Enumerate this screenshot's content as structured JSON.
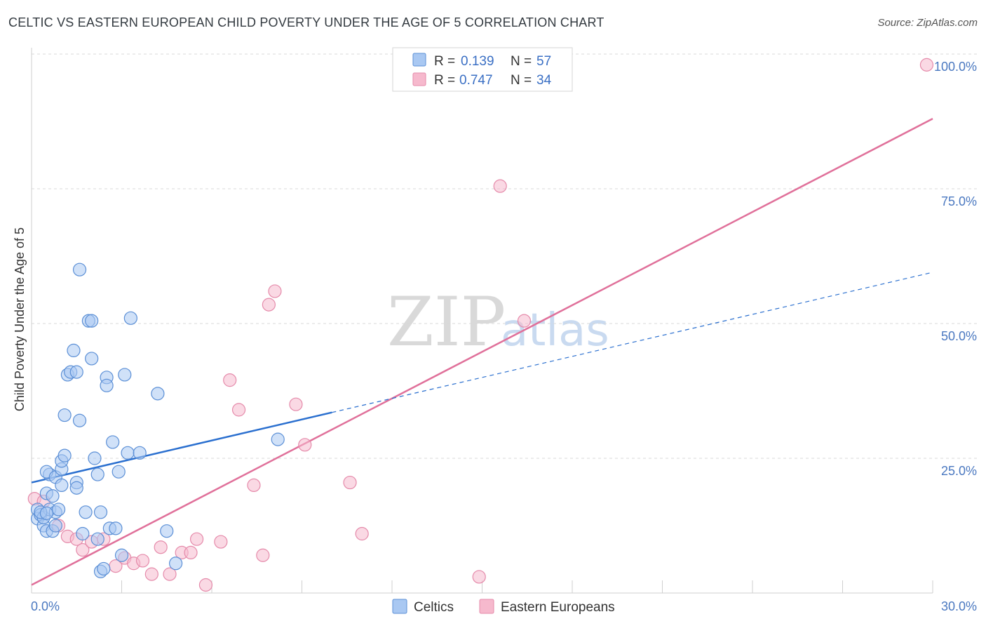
{
  "title": "CELTIC VS EASTERN EUROPEAN CHILD POVERTY UNDER THE AGE OF 5 CORRELATION CHART",
  "source": "Source: ZipAtlas.com",
  "watermark": {
    "zip": "ZIP",
    "atlas": "atlas"
  },
  "legend": {
    "rows": [
      {
        "r_label": "R =",
        "r_value": "0.139",
        "n_label": "N =",
        "n_value": "57"
      },
      {
        "r_label": "R =",
        "r_value": "0.747",
        "n_label": "N =",
        "n_value": "34"
      }
    ]
  },
  "bottom_legend": {
    "celtics": "Celtics",
    "eastern": "Eastern Europeans"
  },
  "colors": {
    "celtic_fill": "#a9c8f2",
    "celtic_stroke": "#5b8fd6",
    "celtic_line": "#2a6fcf",
    "eastern_fill": "#f6b9cd",
    "eastern_stroke": "#e58aaa",
    "eastern_line": "#e0709a",
    "grid": "#d8d8d8",
    "tick_label": "#4a78c0"
  },
  "chart_data": {
    "type": "scatter",
    "title": "CELTIC VS EASTERN EUROPEAN CHILD POVERTY UNDER THE AGE OF 5 CORRELATION CHART",
    "xlabel": "",
    "ylabel": "Child Poverty Under the Age of 5",
    "xlim": [
      0,
      30
    ],
    "ylim": [
      0,
      100
    ],
    "x_tick_labels": [
      "0.0%",
      "30.0%"
    ],
    "y_ticks": [
      25,
      50,
      75,
      100
    ],
    "y_tick_labels": [
      "25.0%",
      "50.0%",
      "75.0%",
      "100.0%"
    ],
    "grid": true,
    "legend_position": "top-center",
    "series": [
      {
        "name": "Celtics",
        "r": 0.139,
        "n": 57,
        "trend": {
          "solid": [
            [
              0,
              20.5
            ],
            [
              10,
              33.5
            ]
          ],
          "dashed": [
            [
              10,
              33.5
            ],
            [
              30,
              59.5
            ]
          ]
        },
        "points": [
          [
            0.2,
            15.5
          ],
          [
            0.2,
            13.8
          ],
          [
            0.3,
            14.5
          ],
          [
            0.4,
            12.5
          ],
          [
            0.5,
            11.5
          ],
          [
            0.4,
            14.0
          ],
          [
            0.5,
            18.5
          ],
          [
            0.6,
            15.5
          ],
          [
            0.6,
            22.0
          ],
          [
            0.5,
            22.5
          ],
          [
            0.7,
            18.0
          ],
          [
            0.7,
            11.5
          ],
          [
            0.8,
            21.5
          ],
          [
            0.8,
            15.0
          ],
          [
            0.8,
            12.5
          ],
          [
            0.9,
            15.5
          ],
          [
            1.0,
            20.0
          ],
          [
            1.0,
            23.0
          ],
          [
            1.0,
            24.5
          ],
          [
            1.1,
            25.5
          ],
          [
            1.1,
            33.0
          ],
          [
            1.2,
            40.5
          ],
          [
            1.3,
            41.0
          ],
          [
            1.4,
            45.0
          ],
          [
            1.5,
            41.0
          ],
          [
            1.5,
            20.5
          ],
          [
            1.5,
            19.5
          ],
          [
            1.6,
            32.0
          ],
          [
            1.7,
            11.0
          ],
          [
            1.8,
            15.0
          ],
          [
            1.9,
            50.5
          ],
          [
            2.0,
            43.5
          ],
          [
            2.0,
            50.5
          ],
          [
            2.1,
            25.0
          ],
          [
            2.2,
            10.0
          ],
          [
            2.2,
            22.0
          ],
          [
            2.3,
            4.0
          ],
          [
            2.4,
            4.5
          ],
          [
            2.3,
            15.0
          ],
          [
            2.5,
            40.0
          ],
          [
            2.5,
            38.5
          ],
          [
            2.6,
            12.0
          ],
          [
            2.7,
            28.0
          ],
          [
            2.8,
            12.0
          ],
          [
            2.9,
            22.5
          ],
          [
            3.0,
            7.0
          ],
          [
            3.1,
            40.5
          ],
          [
            3.2,
            26.0
          ],
          [
            3.3,
            51.0
          ],
          [
            3.6,
            26.0
          ],
          [
            4.2,
            37.0
          ],
          [
            4.5,
            11.5
          ],
          [
            4.8,
            5.5
          ],
          [
            8.2,
            28.5
          ],
          [
            1.6,
            60.0
          ],
          [
            0.3,
            15.0
          ],
          [
            0.5,
            14.8
          ]
        ]
      },
      {
        "name": "Eastern Europeans",
        "r": 0.747,
        "n": 34,
        "trend": {
          "solid": [
            [
              0,
              1.5
            ],
            [
              30,
              88.0
            ]
          ]
        },
        "points": [
          [
            0.1,
            17.5
          ],
          [
            0.9,
            12.5
          ],
          [
            1.2,
            10.5
          ],
          [
            1.5,
            10.0
          ],
          [
            1.7,
            8.0
          ],
          [
            2.0,
            9.5
          ],
          [
            2.4,
            10.0
          ],
          [
            2.8,
            5.0
          ],
          [
            3.1,
            6.5
          ],
          [
            3.4,
            5.5
          ],
          [
            3.7,
            6.0
          ],
          [
            4.0,
            3.5
          ],
          [
            4.3,
            8.5
          ],
          [
            4.6,
            3.5
          ],
          [
            5.0,
            7.5
          ],
          [
            5.3,
            7.5
          ],
          [
            5.5,
            10.0
          ],
          [
            5.8,
            1.5
          ],
          [
            6.3,
            9.5
          ],
          [
            6.6,
            39.5
          ],
          [
            6.9,
            34.0
          ],
          [
            7.4,
            20.0
          ],
          [
            7.7,
            7.0
          ],
          [
            7.9,
            53.5
          ],
          [
            8.1,
            56.0
          ],
          [
            8.8,
            35.0
          ],
          [
            9.1,
            27.5
          ],
          [
            10.6,
            20.5
          ],
          [
            11.0,
            11.0
          ],
          [
            14.9,
            3.0
          ],
          [
            15.6,
            75.5
          ],
          [
            16.4,
            50.5
          ],
          [
            29.8,
            98.0
          ],
          [
            0.4,
            17.0
          ]
        ]
      }
    ]
  }
}
